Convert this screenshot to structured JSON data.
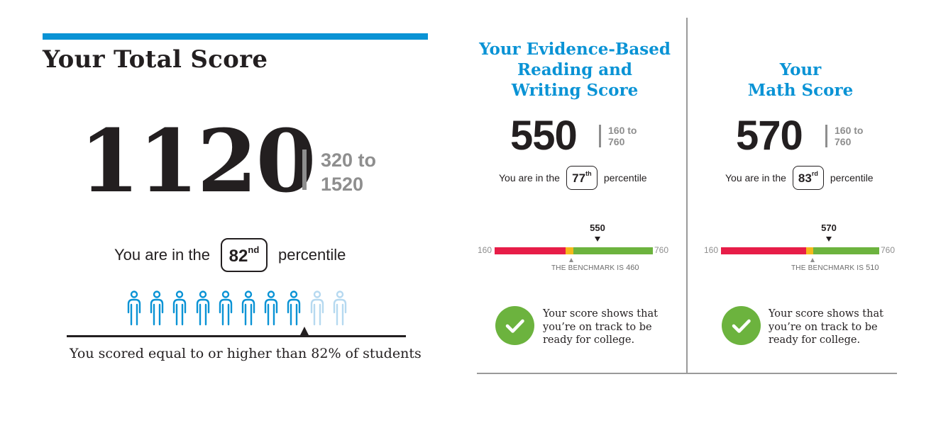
{
  "total": {
    "heading": "Your Total Score",
    "score": "1120",
    "range_line1": "320 to",
    "range_line2": "1520",
    "percentile_prefix": "You are in the",
    "percentile_number": "82",
    "percentile_suffix_sup": "nd",
    "percentile_suffix": "percentile",
    "people_total": 10,
    "people_highlighted": 8,
    "summary": "You scored equal to or higher than 82% of students",
    "marker_percent": 0.7
  },
  "ebrw": {
    "title_line1": "Your Evidence-Based",
    "title_line2": "Reading and",
    "title_line3": "Writing Score",
    "score": "550",
    "range_line1": "160 to",
    "range_line2": "760",
    "percentile_prefix": "You are in the",
    "percentile_number": "77",
    "percentile_suffix_sup": "th",
    "percentile_suffix": "percentile",
    "bar_min": "160",
    "bar_max": "760",
    "bar_value_label": "550",
    "benchmark_prefix": "THE BENCHMARK IS",
    "benchmark_value": "460",
    "ontrack_line1": "Your score shows that",
    "ontrack_line2": "you’re on track to be",
    "ontrack_line3": "ready for college."
  },
  "math": {
    "title_line1": "Your",
    "title_line2": "Math Score",
    "score": "570",
    "range_line1": "160 to",
    "range_line2": "760",
    "percentile_prefix": "You are in the",
    "percentile_number": "83",
    "percentile_suffix_sup": "rd",
    "percentile_suffix": "percentile",
    "bar_min": "160",
    "bar_max": "760",
    "bar_value_label": "570",
    "benchmark_prefix": "THE BENCHMARK IS",
    "benchmark_value": "510",
    "ontrack_line1": "Your score shows that",
    "ontrack_line2": "you’re on track to be",
    "ontrack_line3": "ready for college."
  },
  "colors": {
    "accent_blue": "#0a93d5",
    "person_light": "#b6d9f0",
    "bar_red": "#e71d48",
    "bar_yellow": "#f5b81c",
    "bar_green": "#6cb33e",
    "check_green": "#6cb33e",
    "range_gray": "#8e8e8e"
  },
  "icons": {
    "person": "person-icon",
    "check": "checkmark-icon"
  }
}
